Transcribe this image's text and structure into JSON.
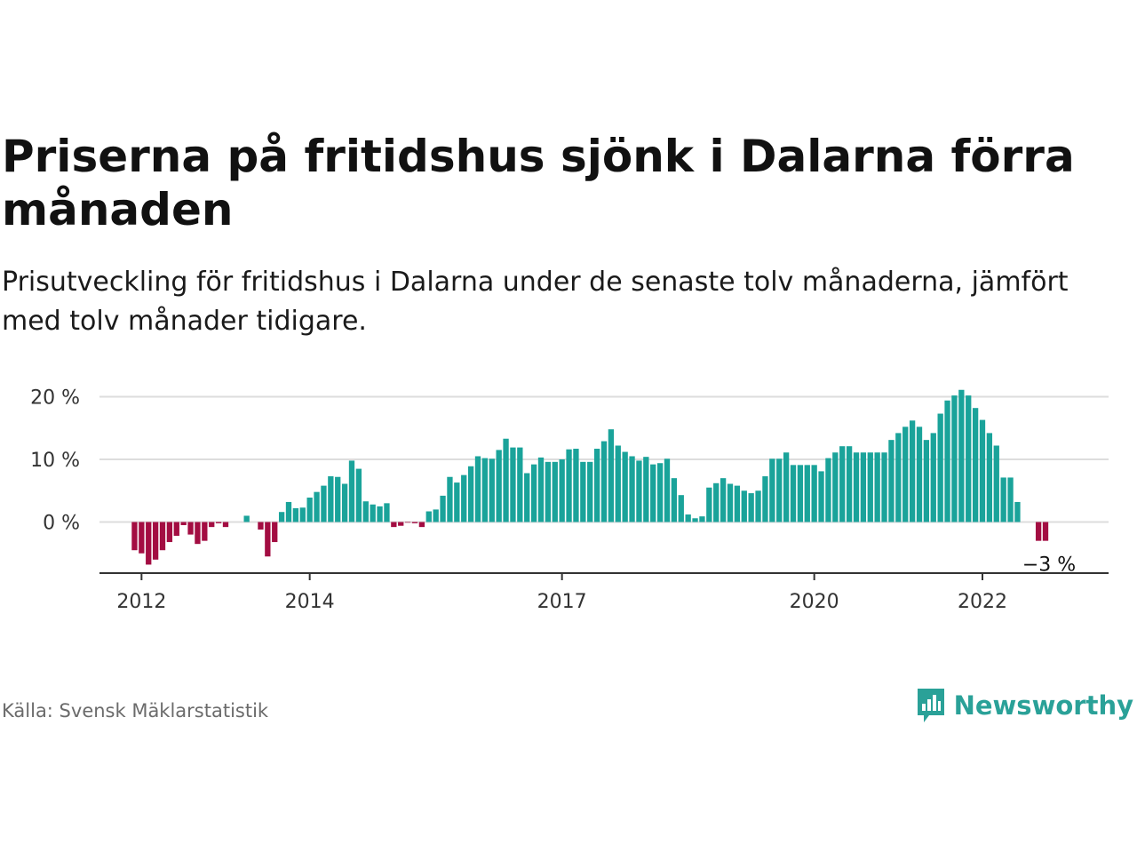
{
  "title": "Priserna på fritidshus sjönk i Dalarna förra månaden",
  "subtitle": "Prisutveckling för fritidshus i Dalarna under de senaste tolv månaderna, jämfört med tolv månader tidigare.",
  "source": "Källa: Svensk Mäklarstatistik",
  "brand": {
    "name": "Newsworthy",
    "color": "#2aa198",
    "icon": "bar-chart-speech-bubble-icon"
  },
  "colors": {
    "positive": "#1aa39a",
    "negative": "#a30d42",
    "grid": "#dddddd",
    "axis": "#333333"
  },
  "chart_data": {
    "type": "bar",
    "title": "Priserna på fritidshus sjönk i Dalarna förra månaden",
    "subtitle": "Prisutveckling för fritidshus i Dalarna under de senaste tolv månaderna, jämfört med tolv månader tidigare.",
    "xlabel": "",
    "ylabel": "",
    "unit": "%",
    "ylim": [
      -8,
      21.5
    ],
    "yticks": [
      0,
      10,
      20
    ],
    "ytick_labels": [
      "0 %",
      "10 %",
      "20 %"
    ],
    "grid": true,
    "x_start": "2011-07",
    "x_end": "2023-07",
    "xticks": [
      {
        "date": "2012-01",
        "label": "2012"
      },
      {
        "date": "2014-01",
        "label": "2014"
      },
      {
        "date": "2017-01",
        "label": "2017"
      },
      {
        "date": "2020-01",
        "label": "2020"
      },
      {
        "date": "2022-01",
        "label": "2022"
      }
    ],
    "first_month": "2011-12",
    "values": [
      -4.5,
      -5,
      -6.8,
      -6,
      -4.5,
      -3.2,
      -2.2,
      -0.5,
      -2,
      -3.5,
      -3,
      -0.8,
      -0.2,
      -0.8,
      0,
      0,
      1,
      0,
      -1.2,
      -5.5,
      -3.2,
      1.6,
      3.2,
      2.2,
      2.3,
      3.9,
      4.8,
      5.8,
      7.3,
      7.2,
      6.1,
      9.8,
      8.5,
      3.3,
      2.8,
      2.5,
      3,
      -0.8,
      -0.6,
      -0.1,
      -0.2,
      -0.8,
      1.7,
      2,
      4.2,
      7.2,
      6.3,
      7.5,
      8.9,
      10.5,
      10.2,
      10.1,
      11.5,
      13.3,
      11.9,
      11.9,
      7.8,
      9.2,
      10.3,
      9.6,
      9.6,
      10,
      11.6,
      11.7,
      9.6,
      9.6,
      11.7,
      12.9,
      14.8,
      12.2,
      11.2,
      10.5,
      9.8,
      10.4,
      9.2,
      9.4,
      10.1,
      7,
      4.3,
      1.2,
      0.6,
      0.9,
      5.5,
      6.2,
      7,
      6.1,
      5.8,
      5,
      4.6,
      5,
      7.3,
      10.1,
      10.1,
      11.1,
      9.1,
      9.1,
      9.1,
      9.1,
      8.1,
      10.2,
      11.1,
      12.1,
      12.1,
      11.1,
      11.1,
      11.1,
      11.1,
      11.1,
      13.1,
      14.2,
      15.2,
      16.2,
      15.2,
      13.1,
      14.2,
      17.3,
      19.4,
      20.2,
      21.1,
      20.2,
      18.2,
      16.3,
      14.2,
      12.2,
      7.1,
      7.1,
      3.2,
      null,
      null,
      -3,
      -3
    ],
    "last_label": "−3 %"
  }
}
